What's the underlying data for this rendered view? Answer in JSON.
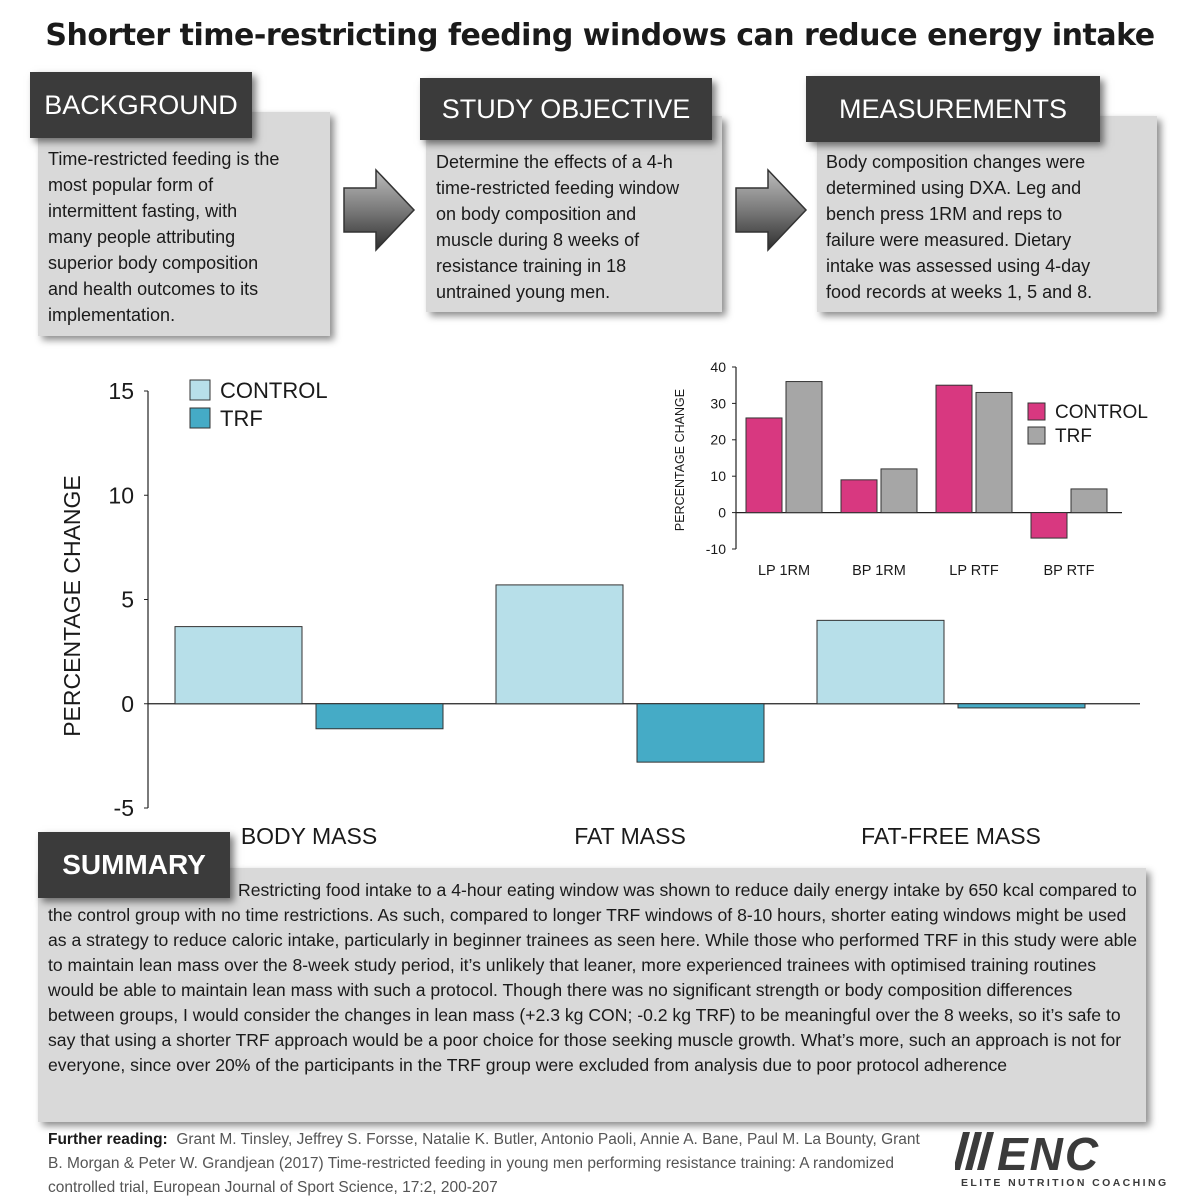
{
  "title": "Shorter time-restricting feeding windows can reduce energy intake",
  "panels": {
    "background": {
      "tag": "BACKGROUND",
      "lines": [
        "Time-restricted feeding is the",
        "most popular form of",
        "intermittent fasting, with",
        "many people attributing",
        "superior body composition",
        "and health outcomes to its",
        "implementation."
      ]
    },
    "objective": {
      "tag": "STUDY OBJECTIVE",
      "lines": [
        "Determine the effects of a 4-h",
        "time-restricted feeding window",
        "on body composition and",
        "muscle during 8 weeks of",
        "resistance training in 18",
        "untrained young men."
      ]
    },
    "measurements": {
      "tag": "MEASUREMENTS",
      "lines": [
        "Body composition changes were",
        "determined using DXA. Leg and",
        "bench press 1RM and reps to",
        "failure were measured. Dietary",
        "intake was assessed using 4-day",
        "food records at weeks 1, 5 and 8."
      ]
    }
  },
  "summary": {
    "tag": "SUMMARY",
    "text": "Restricting food intake to a 4-hour eating window was shown to reduce daily energy intake by 650 kcal compared to the control group with no time restrictions. As such, compared to longer TRF windows of 8-10 hours, shorter eating windows might be used as a strategy to reduce caloric intake, particularly in beginner trainees as seen here. While those who performed TRF in this study were able to maintain lean mass over the 8-week study period, it’s unlikely that leaner, more experienced trainees with optimised training routines would be able to maintain lean mass with such a protocol. Though there was no significant strength or body composition differences between groups, I would consider the changes in lean mass (+2.3 kg CON; -0.2 kg TRF) to be meaningful over the 8 weeks, so it’s safe to say that using a shorter TRF approach would be a poor choice for those seeking muscle growth. What’s more, such an approach is not for everyone, since over 20% of the participants in the TRF group were excluded from analysis due to poor protocol adherence"
  },
  "further_reading": {
    "label": "Further reading:",
    "text": "Grant M. Tinsley, Jeffrey S. Forsse, Natalie K. Butler, Antonio Paoli, Annie A. Bane, Paul M. La Bounty, Grant B. Morgan & Peter W. Grandjean (2017) Time-restricted feeding in young men performing resistance training: A randomized controlled trial, European Journal of Sport Science, 17:2, 200-207"
  },
  "logo": {
    "mark": "ENC",
    "tagline": "ELITE NUTRITION COACHING"
  },
  "chart_data": [
    {
      "type": "bar",
      "ylabel": "PERCENTAGE CHANGE",
      "xlabel": "",
      "ylim": [
        -5,
        15
      ],
      "yticks": [
        15,
        10,
        5,
        0,
        -5
      ],
      "categories": [
        "BODY MASS",
        "FAT MASS",
        "FAT-FREE MASS"
      ],
      "series": [
        {
          "name": "CONTROL",
          "color": "#b7dfe9",
          "values": [
            3.7,
            5.7,
            4.0
          ]
        },
        {
          "name": "TRF",
          "color": "#45abc6",
          "values": [
            -1.2,
            -2.8,
            -0.2
          ]
        }
      ],
      "legend": "top-left",
      "grid": false
    },
    {
      "type": "bar",
      "ylabel": "PERCENTAGE CHANGE",
      "xlabel": "",
      "ylim": [
        -10,
        40
      ],
      "yticks": [
        40,
        30,
        20,
        10,
        0,
        -10
      ],
      "categories": [
        "LP 1RM",
        "BP 1RM",
        "LP RTF",
        "BP RTF"
      ],
      "series": [
        {
          "name": "CONTROL",
          "color": "#d83880",
          "values": [
            26,
            9,
            35,
            -7
          ]
        },
        {
          "name": "TRF",
          "color": "#a6a6a6",
          "values": [
            36,
            12,
            33,
            6.5
          ]
        }
      ],
      "legend": "right",
      "grid": false
    }
  ]
}
